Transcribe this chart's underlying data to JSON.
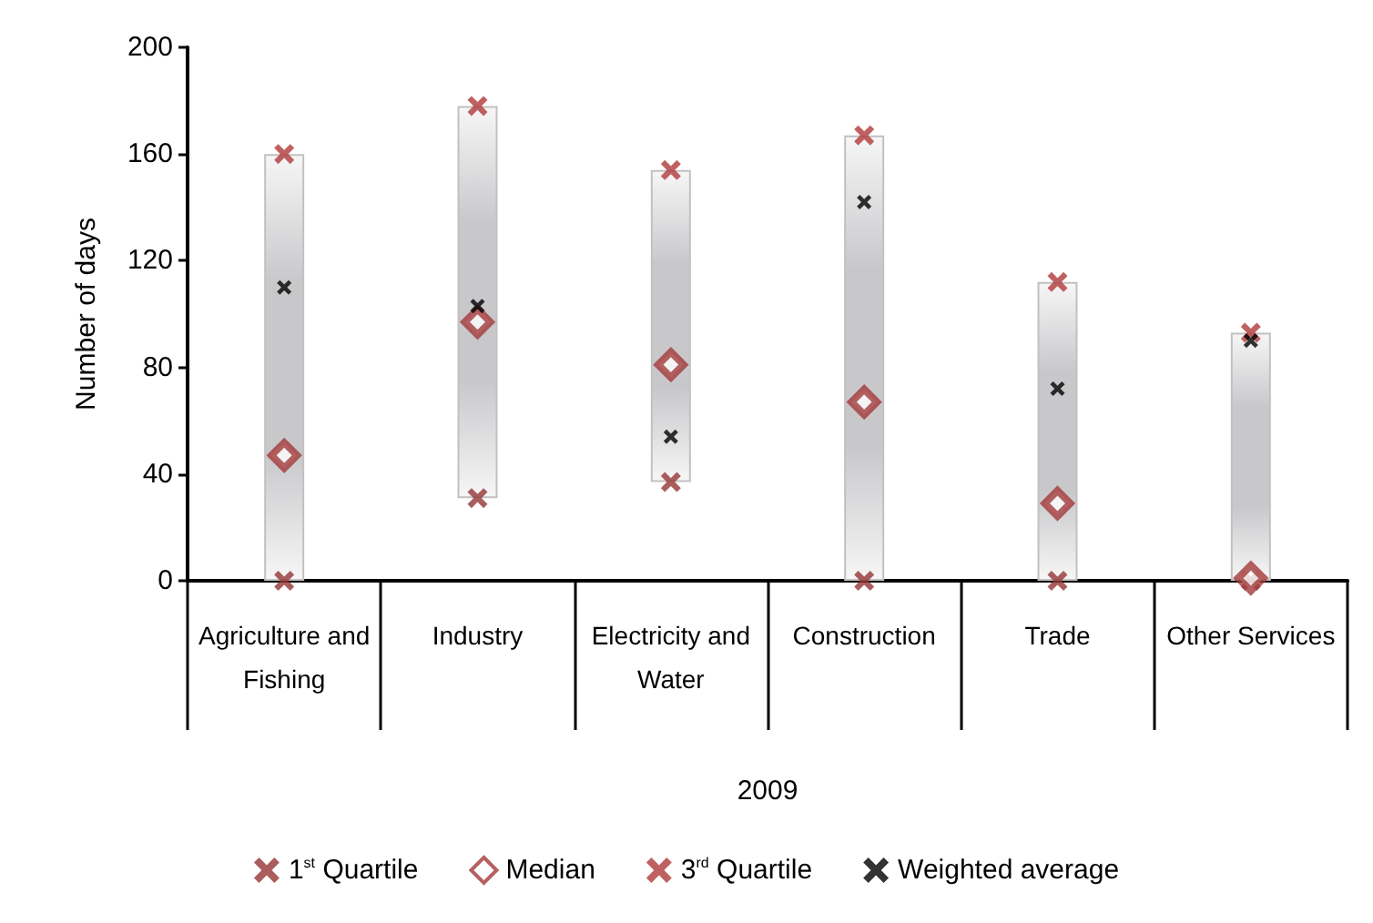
{
  "chart_data": {
    "type": "bar",
    "ylabel": "Number of days",
    "xlabel": "2009",
    "categories": [
      "Agriculture and Fishing",
      "Industry",
      "Electricity and Water",
      "Construction",
      "Trade",
      "Other Services"
    ],
    "ylim": [
      0,
      200
    ],
    "yticks": [
      0,
      40,
      80,
      120,
      160,
      200
    ],
    "grid": false,
    "legend": "bottom",
    "series": [
      {
        "color": "#c8c8cb",
        "base": [
          0,
          31,
          37,
          0,
          0,
          0
        ],
        "values": [
          160,
          147,
          117,
          167,
          112,
          93
        ]
      },
      {
        "type": "scatter",
        "name": "1$^{st}$ Quartile",
        "color": "#943634",
        "marker": "cross",
        "values": [
          0,
          31,
          37,
          0,
          0,
          0
        ]
      },
      {
        "type": "scatter",
        "name": "Median",
        "color": "#a33a3a",
        "marker": "diamond",
        "values": [
          47,
          97,
          81,
          67,
          29,
          1
        ]
      },
      {
        "type": "scatter",
        "name": "3$^{rd}$ Quartile",
        "color": "#b03a3a",
        "marker": "cross",
        "values": [
          160,
          178,
          154,
          167,
          112,
          93
        ]
      },
      {
        "type": "scatter",
        "name": "Weighted average",
        "color": "#000000",
        "marker": "cross",
        "values": [
          110,
          103,
          54,
          142,
          72,
          90
        ]
      }
    ]
  }
}
